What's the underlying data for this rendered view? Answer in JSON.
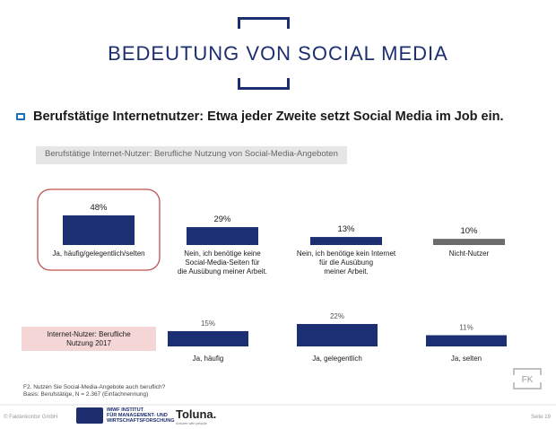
{
  "slide": {
    "title": "BEDEUTUNG VON SOCIAL MEDIA",
    "headline": "Berufstätige Internetnutzer: Etwa jeder Zweite setzt Social Media im Job ein.",
    "subtitle": "Berufstätige Internet-Nutzer: Berufliche Nutzung von Social-Media-Angeboten",
    "footnote_line1": "F2. Nutzen Sie Social-Media-Angebote auch beruflich?",
    "footnote_line2": "Basis: Berufstätige, N = 2.367 (Einfachnennung)",
    "footer_left": "© Faktenkontor GmbH",
    "footer_right": "Seite 19",
    "logo_imwf_line1": "IMWF INSTITUT",
    "logo_imwf_line2": "FÜR MANAGEMENT- UND",
    "logo_imwf_line3": "WIRTSCHAFTSFORSCHUNG",
    "logo_toluna": "Toluna.",
    "logo_toluna_sub": "Answer with people",
    "fk_logo": "FK"
  },
  "colors": {
    "accent_navy": "#1d2e6e",
    "bar_navy": "#1b2f72",
    "bar_grey": "#6b6b6b",
    "highlight_red": "#c0504d",
    "label_box_pink": "#f4d6d6"
  },
  "chart_data": [
    {
      "type": "bar",
      "categories": [
        "Ja, häufig/gelegentlich/selten",
        "Nein, ich benötige keine Social-Media-Seiten für die Ausübung meiner Arbeit.",
        "Nein, ich benötige kein Internet für die Ausübung meiner Arbeit.",
        "Nicht-Nutzer"
      ],
      "category_lines": [
        [
          "Ja, häufig/gelegentlich/selten"
        ],
        [
          "Nein, ich benötige keine",
          "Social-Media-Seiten für",
          "die Ausübung meiner Arbeit."
        ],
        [
          "Nein, ich benötige kein Internet",
          "für die Ausübung",
          "meiner Arbeit."
        ],
        [
          "Nicht-Nutzer"
        ]
      ],
      "values": [
        48,
        29,
        13,
        10
      ],
      "value_labels": [
        "48%",
        "29%",
        "13%",
        "10%"
      ],
      "bar_colors": [
        "#1b2f72",
        "#1b2f72",
        "#1b2f72",
        "#6b6b6b"
      ],
      "highlighted_category": "Ja, häufig/gelegentlich/selten",
      "unit": "%"
    },
    {
      "type": "bar",
      "series_label_lines": [
        "Internet-Nutzer: Berufliche",
        "Nutzung 2017"
      ],
      "categories": [
        "Ja, häufig",
        "Ja, gelegentlich",
        "Ja, selten"
      ],
      "values": [
        15,
        22,
        11
      ],
      "value_labels": [
        "15%",
        "22%",
        "11%"
      ],
      "unit": "%"
    }
  ]
}
